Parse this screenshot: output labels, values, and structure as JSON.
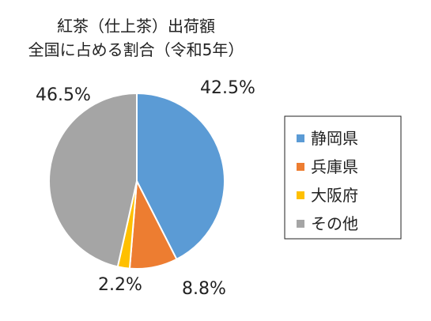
{
  "chart_data": {
    "type": "pie",
    "title": [
      "紅茶（仕上茶）出荷額",
      "全国に占める割合（令和5年）"
    ],
    "categories": [
      "静岡県",
      "兵庫県",
      "大阪府",
      "その他"
    ],
    "values": [
      42.5,
      8.8,
      2.2,
      46.5
    ],
    "unit": "%",
    "data_labels": [
      "42.5%",
      "8.8%",
      "2.2%",
      "46.5%"
    ],
    "colors": [
      "#5b9bd5",
      "#ed7d31",
      "#ffc000",
      "#a5a5a5"
    ],
    "start_angle": "12 o'clock",
    "direction": "clockwise",
    "legend_position": "right"
  }
}
